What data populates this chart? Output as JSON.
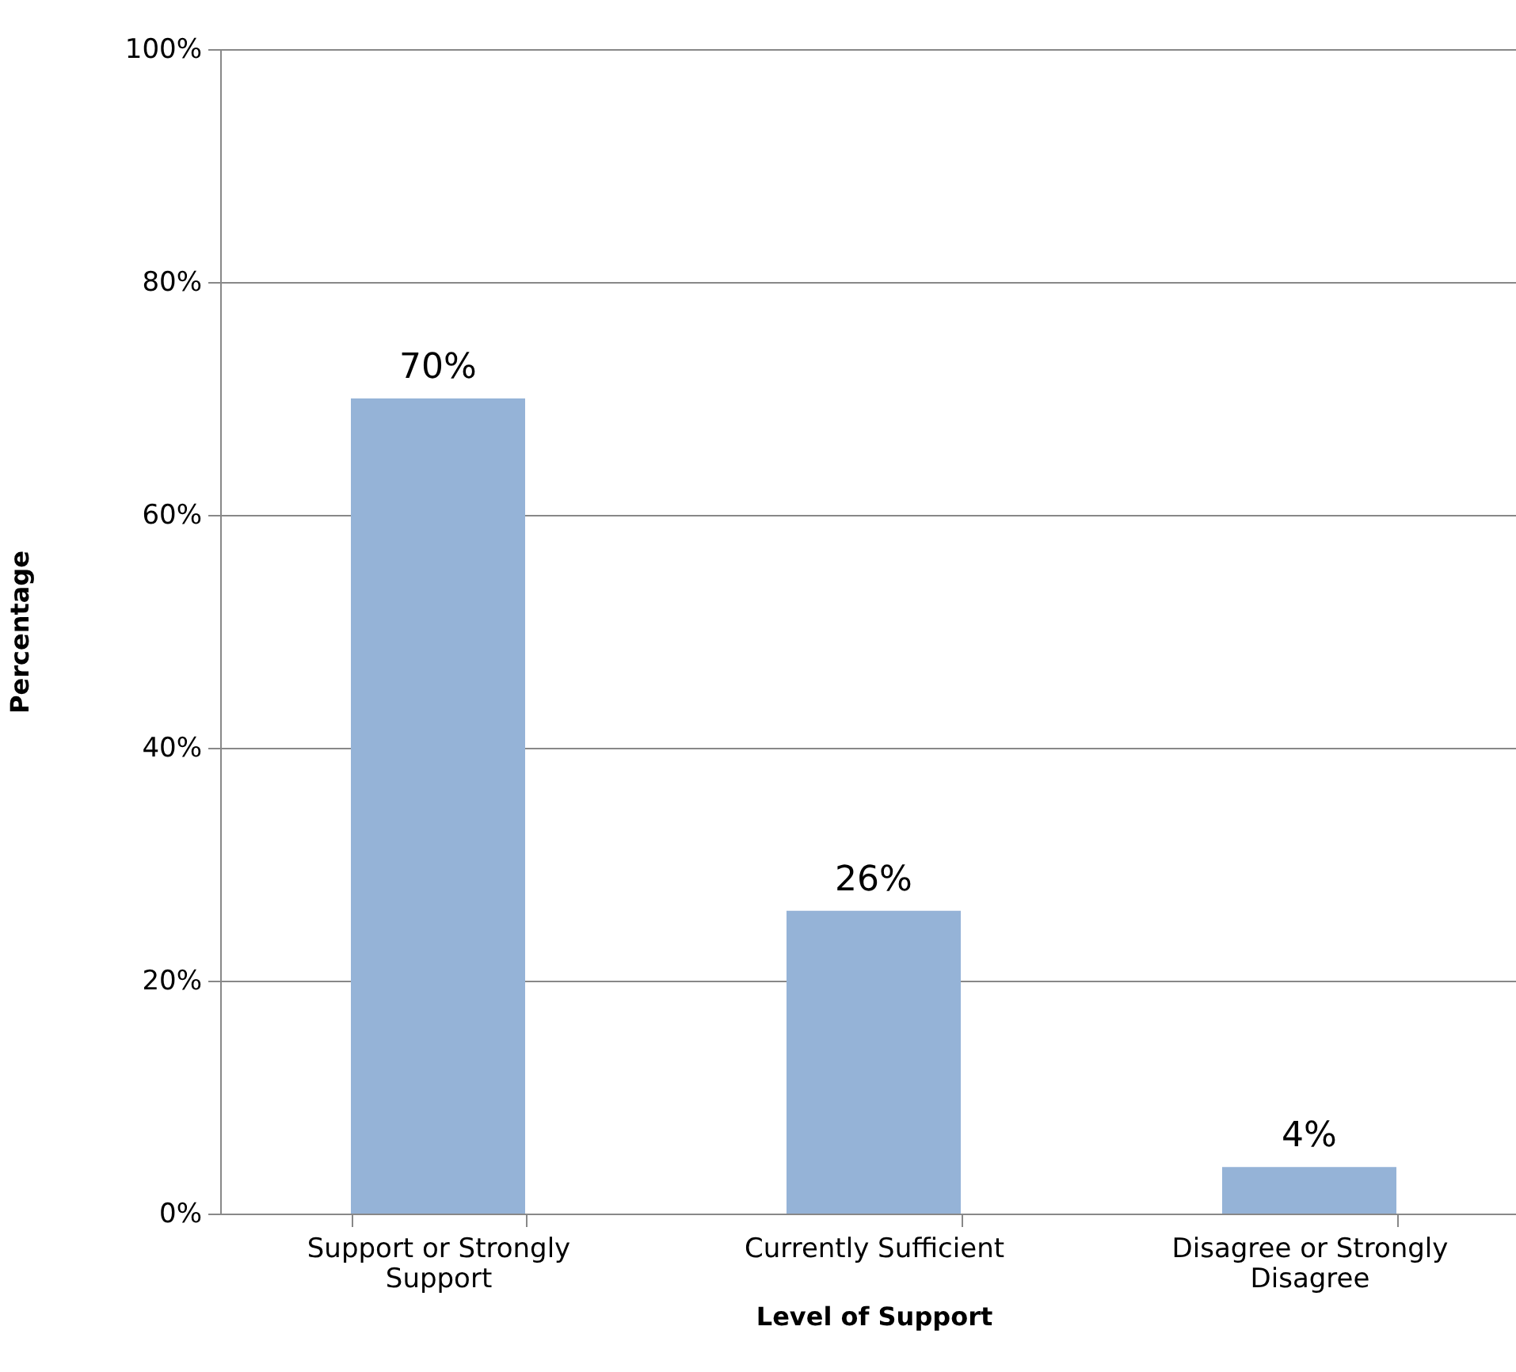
{
  "chart_data": {
    "type": "bar",
    "xlabel": "Level of Support",
    "ylabel": "Percentage",
    "categories": [
      "Support or Strongly Support",
      "Currently Sufficient",
      "Disagree or Strongly Disagree"
    ],
    "values": [
      70,
      26,
      4
    ],
    "value_labels": [
      "70%",
      "26%",
      "4%"
    ],
    "color": "#95b3d7",
    "ylim": [
      0,
      100
    ],
    "yticks": [
      {
        "value": 0,
        "label": "0%"
      },
      {
        "value": 20,
        "label": "20%"
      },
      {
        "value": 40,
        "label": "40%"
      },
      {
        "value": 60,
        "label": "60%"
      },
      {
        "value": 80,
        "label": "80%"
      },
      {
        "value": 100,
        "label": "100%"
      }
    ],
    "grid": "y"
  }
}
